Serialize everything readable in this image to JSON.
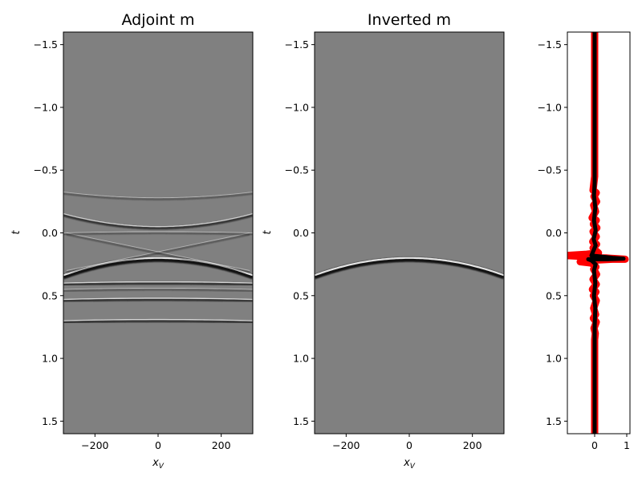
{
  "chart_data": [
    {
      "type": "heatmap",
      "title": "Adjoint m",
      "xlabel": "x_V",
      "ylabel": "t",
      "xlim": [
        -300,
        300
      ],
      "ylim": [
        1.6,
        -1.6
      ],
      "colormap": "gray",
      "x_ticks": [
        -200,
        0,
        200
      ],
      "y_ticks": [
        -1.5,
        -1.0,
        -0.5,
        0.0,
        0.5,
        1.0,
        1.5
      ],
      "features": [
        {
          "kind": "hyperbola",
          "apex_t": 0.2,
          "edge_t": 0.32,
          "strength": "strong"
        },
        {
          "kind": "hyperbola",
          "apex_t": -0.05,
          "edge_t": -0.14,
          "strength": "medium"
        },
        {
          "kind": "hyperbola",
          "apex_t": -0.28,
          "edge_t": -0.32,
          "strength": "weak"
        },
        {
          "kind": "line",
          "t_left": 0.3,
          "t_right": 0.0,
          "strength": "weak"
        },
        {
          "kind": "line",
          "t_left": 0.0,
          "t_right": 0.3,
          "strength": "weak"
        },
        {
          "kind": "line",
          "t": 0.0,
          "strength": "weak"
        },
        {
          "kind": "line",
          "t": 0.4,
          "strength": "medium"
        },
        {
          "kind": "line",
          "t": 0.45,
          "strength": "weak"
        },
        {
          "kind": "line",
          "t": 0.53,
          "strength": "medium"
        },
        {
          "kind": "line",
          "t": 0.7,
          "strength": "medium"
        }
      ]
    },
    {
      "type": "heatmap",
      "title": "Inverted m",
      "xlabel": "x_V",
      "ylabel": "t",
      "xlim": [
        -300,
        300
      ],
      "ylim": [
        1.6,
        -1.6
      ],
      "colormap": "gray",
      "x_ticks": [
        -200,
        0,
        200
      ],
      "y_ticks": [
        -1.5,
        -1.0,
        -0.5,
        0.0,
        0.5,
        1.0,
        1.5
      ],
      "features": [
        {
          "kind": "hyperbola",
          "apex_t": 0.2,
          "edge_t": 0.32,
          "strength": "strong"
        }
      ]
    },
    {
      "type": "line",
      "xlim": [
        -0.85,
        1.1
      ],
      "ylim": [
        1.6,
        -1.6
      ],
      "x_ticks": [
        0,
        1
      ],
      "y_ticks": [
        -1.5,
        -1.0,
        -0.5,
        0.0,
        0.5,
        1.0,
        1.5
      ],
      "series": [
        {
          "color": "#ff0000",
          "points": [
            [
              0,
              -1.6
            ],
            [
              0,
              -0.45
            ],
            [
              -0.05,
              -0.34
            ],
            [
              0.05,
              -0.32
            ],
            [
              -0.02,
              -0.29
            ],
            [
              0.06,
              -0.25
            ],
            [
              -0.03,
              -0.22
            ],
            [
              0.03,
              -0.17
            ],
            [
              -0.08,
              -0.12
            ],
            [
              0.05,
              -0.1
            ],
            [
              -0.04,
              -0.07
            ],
            [
              0.07,
              -0.04
            ],
            [
              -0.05,
              -0.01
            ],
            [
              0.05,
              0.03
            ],
            [
              -0.06,
              0.07
            ],
            [
              0.06,
              0.09
            ],
            [
              -0.05,
              0.12
            ],
            [
              0.03,
              0.14
            ],
            [
              0.12,
              0.16
            ],
            [
              -0.25,
              0.17
            ],
            [
              -0.9,
              0.18
            ],
            [
              -0.2,
              0.19
            ],
            [
              0.1,
              0.2
            ],
            [
              0.35,
              0.2
            ],
            [
              0.95,
              0.21
            ],
            [
              0.55,
              0.21
            ],
            [
              -0.15,
              0.22
            ],
            [
              -0.45,
              0.23
            ],
            [
              -0.1,
              0.24
            ],
            [
              0.04,
              0.27
            ],
            [
              -0.03,
              0.29
            ],
            [
              0.06,
              0.33
            ],
            [
              -0.05,
              0.37
            ],
            [
              0.05,
              0.41
            ],
            [
              -0.07,
              0.45
            ],
            [
              0.04,
              0.47
            ],
            [
              -0.04,
              0.5
            ],
            [
              0.05,
              0.54
            ],
            [
              -0.03,
              0.6
            ],
            [
              0.03,
              0.65
            ],
            [
              -0.04,
              0.68
            ],
            [
              0.05,
              0.71
            ],
            [
              -0.02,
              0.76
            ],
            [
              0.02,
              0.8
            ],
            [
              0,
              0.85
            ],
            [
              0,
              1.6
            ]
          ]
        },
        {
          "color": "#000000",
          "points": [
            [
              0,
              -1.6
            ],
            [
              0,
              -0.4
            ],
            [
              -0.02,
              -0.3
            ],
            [
              0.02,
              -0.2
            ],
            [
              -0.02,
              -0.1
            ],
            [
              0.03,
              -0.02
            ],
            [
              -0.03,
              0.05
            ],
            [
              0.03,
              0.1
            ],
            [
              -0.05,
              0.15
            ],
            [
              -0.1,
              0.18
            ],
            [
              0.25,
              0.19
            ],
            [
              0.6,
              0.2
            ],
            [
              0.9,
              0.205
            ],
            [
              0.4,
              0.21
            ],
            [
              -0.2,
              0.21
            ],
            [
              -0.1,
              0.22
            ],
            [
              0.03,
              0.25
            ],
            [
              -0.02,
              0.3
            ],
            [
              0.02,
              0.4
            ],
            [
              -0.02,
              0.5
            ],
            [
              0.02,
              0.6
            ],
            [
              0,
              0.75
            ],
            [
              0,
              0.85
            ],
            [
              0,
              1.6
            ]
          ]
        }
      ]
    }
  ]
}
